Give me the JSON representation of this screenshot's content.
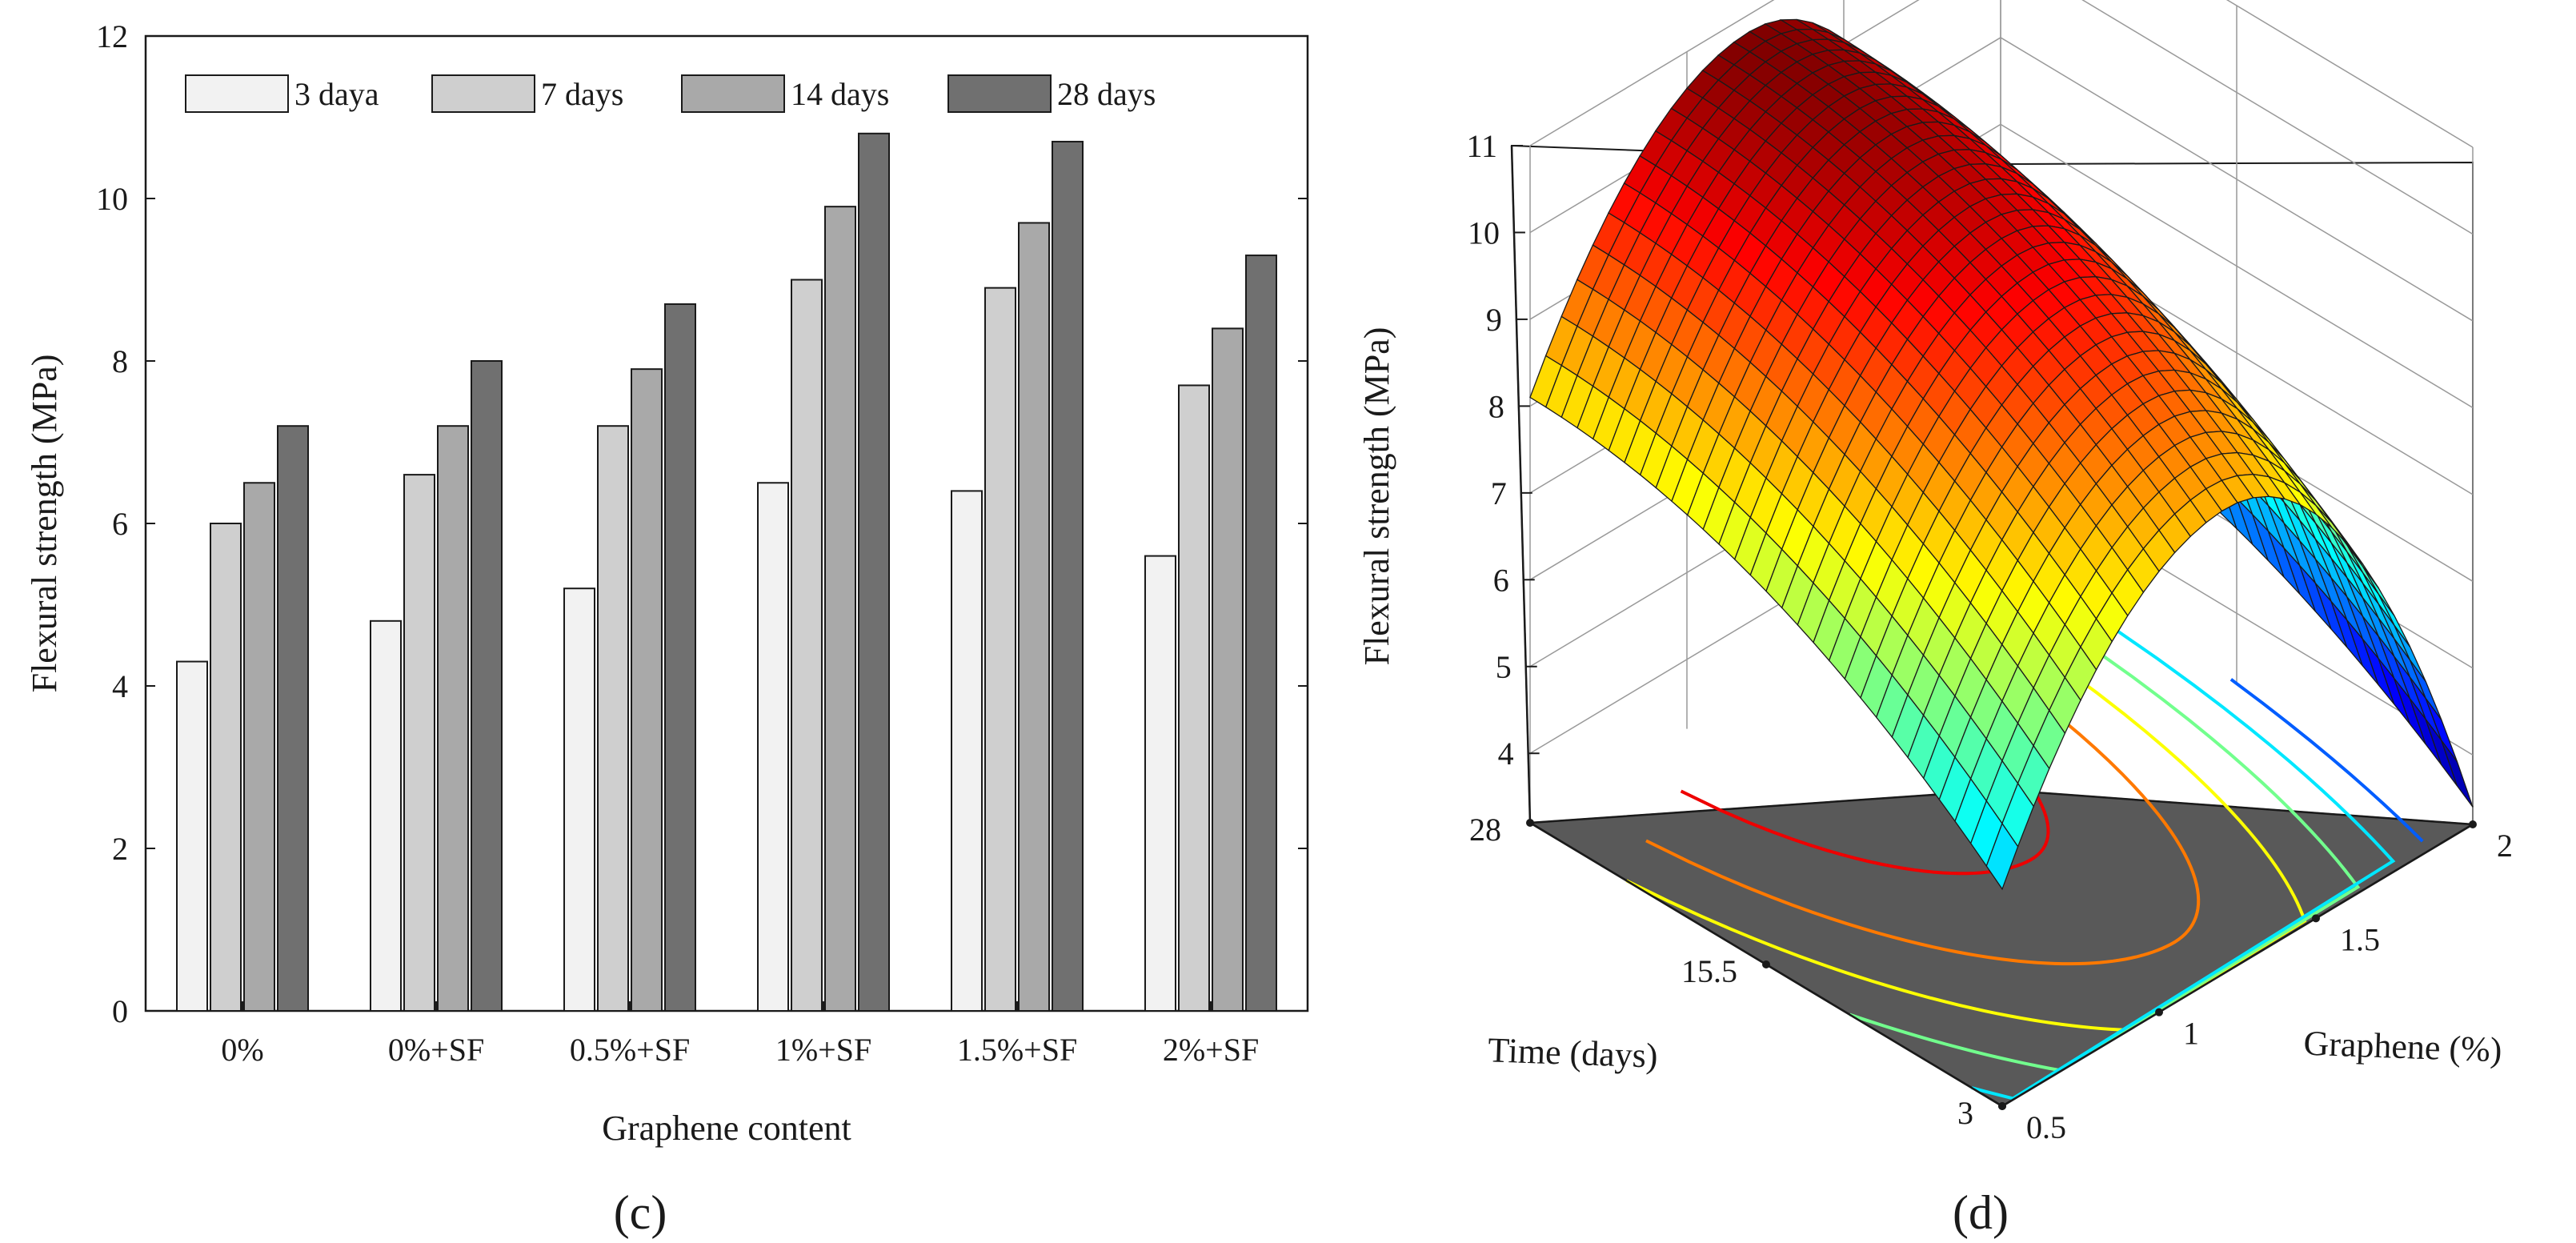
{
  "chart_data": [
    {
      "type": "bar",
      "panel_label": "(c)",
      "categories": [
        "0%",
        "0%+SF",
        "0.5%+SF",
        "1%+SF",
        "1.5%+SF",
        "2%+SF"
      ],
      "series": [
        {
          "name": "3 daya",
          "color": "#f2f2f2",
          "values": [
            4.3,
            4.8,
            5.2,
            6.5,
            6.4,
            5.6
          ]
        },
        {
          "name": "7 days",
          "color": "#cfcfcf",
          "values": [
            6.0,
            6.6,
            7.2,
            9.0,
            8.9,
            7.7
          ]
        },
        {
          "name": "14 days",
          "color": "#a9a9a9",
          "values": [
            6.5,
            7.2,
            7.9,
            9.9,
            9.7,
            8.4
          ]
        },
        {
          "name": "28 days",
          "color": "#707070",
          "values": [
            7.2,
            8.0,
            8.7,
            10.8,
            10.7,
            9.3
          ]
        }
      ],
      "xlabel": "Graphene content",
      "ylabel": "Flexural  strength (MPa)",
      "ylim": [
        0,
        12
      ],
      "yticks": [
        0,
        2,
        4,
        6,
        8,
        10,
        12
      ],
      "legend": "top-left, horizontal"
    },
    {
      "type": "surface3d",
      "panel_label": "(d)",
      "xlabel": "Graphene (%)",
      "ylabel": "Time (days)",
      "zlabel": "Flexural  strength (MPa)",
      "x_ticks": [
        "0.5",
        "1",
        "1.5",
        "2"
      ],
      "y_ticks": [
        "3",
        "15.5",
        "28"
      ],
      "z_ticks": [
        "4",
        "5",
        "6",
        "7",
        "8",
        "9",
        "10",
        "11"
      ],
      "xlim": [
        0.5,
        2
      ],
      "ylim": [
        3,
        28
      ],
      "zlim": [
        3.2,
        11
      ],
      "surface_peak": {
        "graphene": 1.2,
        "time": 28,
        "strength": 10.8
      },
      "corners": [
        {
          "graphene": 0.5,
          "time": 28,
          "strength": 8.1
        },
        {
          "graphene": 2,
          "time": 28,
          "strength": 5.5
        },
        {
          "graphene": 0.5,
          "time": 3,
          "strength": 5.7
        },
        {
          "graphene": 2,
          "time": 3,
          "strength": 3.4
        }
      ],
      "colormap": "jet"
    }
  ]
}
